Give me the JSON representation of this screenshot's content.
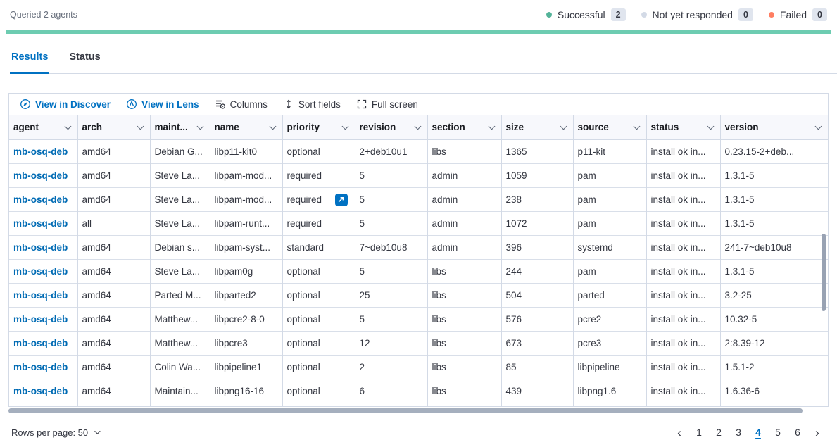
{
  "query_status": {
    "queried_text": "Queried 2 agents",
    "progress_color": "#6dccb1",
    "legend": [
      {
        "label": "Successful",
        "count": "2",
        "color": "#54b399"
      },
      {
        "label": "Not yet responded",
        "count": "0",
        "color": "#d3dae6"
      },
      {
        "label": "Failed",
        "count": "0",
        "color": "#ff7e62"
      }
    ]
  },
  "tabs": [
    {
      "label": "Results",
      "active": true
    },
    {
      "label": "Status",
      "active": false
    }
  ],
  "toolbar": {
    "view_in_discover": "View in Discover",
    "view_in_lens": "View in Lens",
    "columns": "Columns",
    "sort_fields": "Sort fields",
    "full_screen": "Full screen"
  },
  "table": {
    "columns": [
      "agent",
      "arch",
      "maint...",
      "name",
      "priority",
      "revision",
      "section",
      "size",
      "source",
      "status",
      "version"
    ],
    "rows": [
      [
        "mb-osq-deb",
        "amd64",
        "Debian G...",
        "libp11-kit0",
        "optional",
        "2+deb10u1",
        "libs",
        "1365",
        "p11-kit",
        "install ok in...",
        "0.23.15-2+deb..."
      ],
      [
        "mb-osq-deb",
        "amd64",
        "Steve La...",
        "libpam-mod...",
        "required",
        "5",
        "admin",
        "1059",
        "pam",
        "install ok in...",
        "1.3.1-5"
      ],
      [
        "mb-osq-deb",
        "amd64",
        "Steve La...",
        "libpam-mod...",
        "required",
        "5",
        "admin",
        "238",
        "pam",
        "install ok in...",
        "1.3.1-5"
      ],
      [
        "mb-osq-deb",
        "all",
        "Steve La...",
        "libpam-runt...",
        "required",
        "5",
        "admin",
        "1072",
        "pam",
        "install ok in...",
        "1.3.1-5"
      ],
      [
        "mb-osq-deb",
        "amd64",
        "Debian s...",
        "libpam-syst...",
        "standard",
        "7~deb10u8",
        "admin",
        "396",
        "systemd",
        "install ok in...",
        "241-7~deb10u8"
      ],
      [
        "mb-osq-deb",
        "amd64",
        "Steve La...",
        "libpam0g",
        "optional",
        "5",
        "libs",
        "244",
        "pam",
        "install ok in...",
        "1.3.1-5"
      ],
      [
        "mb-osq-deb",
        "amd64",
        "Parted M...",
        "libparted2",
        "optional",
        "25",
        "libs",
        "504",
        "parted",
        "install ok in...",
        "3.2-25"
      ],
      [
        "mb-osq-deb",
        "amd64",
        "Matthew...",
        "libpcre2-8-0",
        "optional",
        "5",
        "libs",
        "576",
        "pcre2",
        "install ok in...",
        "10.32-5"
      ],
      [
        "mb-osq-deb",
        "amd64",
        "Matthew...",
        "libpcre3",
        "optional",
        "12",
        "libs",
        "673",
        "pcre3",
        "install ok in...",
        "2:8.39-12"
      ],
      [
        "mb-osq-deb",
        "amd64",
        "Colin Wa...",
        "libpipeline1",
        "optional",
        "2",
        "libs",
        "85",
        "libpipeline",
        "install ok in...",
        "1.5.1-2"
      ],
      [
        "mb-osq-deb",
        "amd64",
        "Maintain...",
        "libpng16-16",
        "optional",
        "6",
        "libs",
        "439",
        "libpng1.6",
        "install ok in...",
        "1.6.36-6"
      ]
    ],
    "expand_button": {
      "row": 2,
      "col": 4
    }
  },
  "footer": {
    "rows_per_page_label": "Rows per page: 50",
    "pages": [
      "1",
      "2",
      "3",
      "4",
      "5",
      "6"
    ],
    "active_page": "4",
    "prev_arrow": "‹",
    "next_arrow": "›"
  }
}
